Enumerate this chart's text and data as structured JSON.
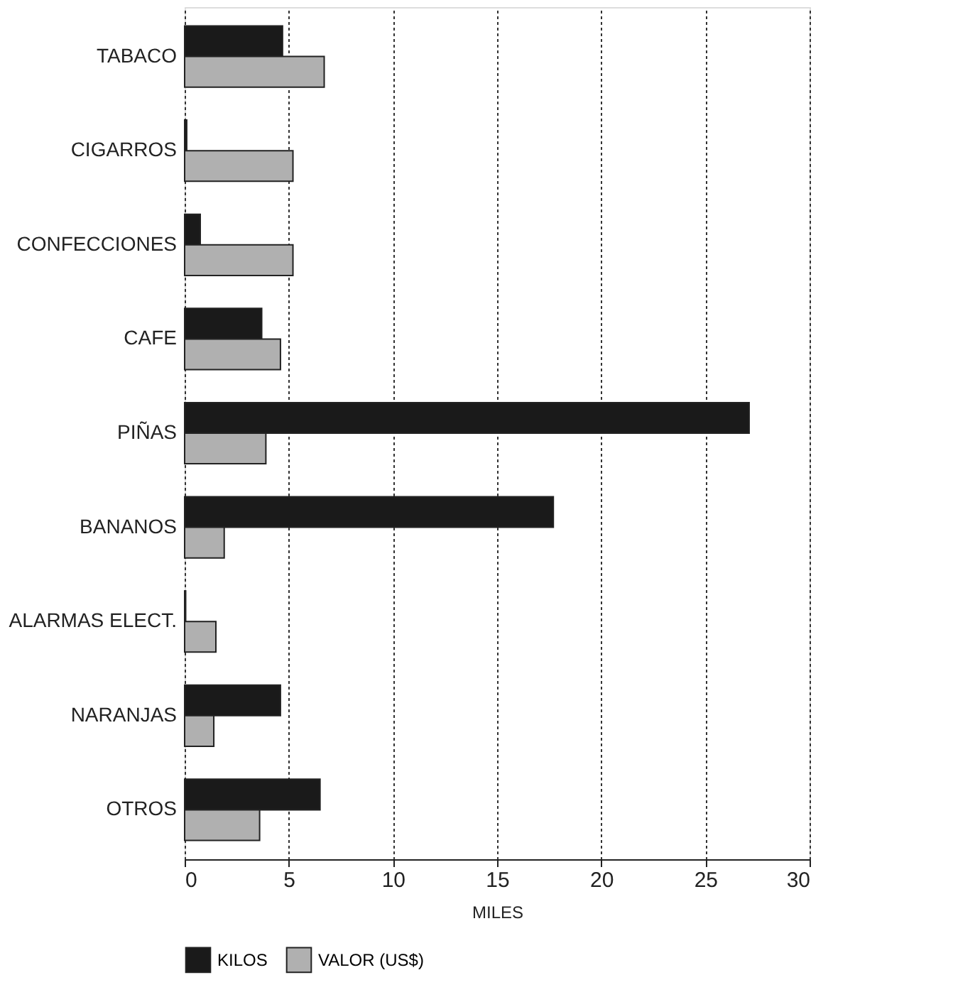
{
  "chart_data": {
    "type": "bar",
    "orientation": "horizontal",
    "xlabel": "MILES",
    "categories": [
      "TABACO",
      "CIGARROS",
      "CONFECCIONES",
      "CAFE",
      "PIÑAS",
      "BANANOS",
      "ALARMAS ELECT.",
      "NARANJAS",
      "OTROS"
    ],
    "series": [
      {
        "name": "KILOS",
        "color": "#1a1a1a",
        "values": [
          4.7,
          0.1,
          0.75,
          3.7,
          27.1,
          17.7,
          0.05,
          4.6,
          6.5
        ]
      },
      {
        "name": "VALOR (US$)",
        "color": "#b0b0b0",
        "values": [
          6.7,
          5.2,
          5.2,
          4.6,
          3.9,
          1.9,
          1.5,
          1.4,
          3.6
        ]
      }
    ],
    "xlim": [
      0,
      30
    ],
    "xticks": [
      0,
      5,
      10,
      15,
      20,
      25,
      30
    ],
    "grid": "x",
    "legend": "bottom"
  }
}
